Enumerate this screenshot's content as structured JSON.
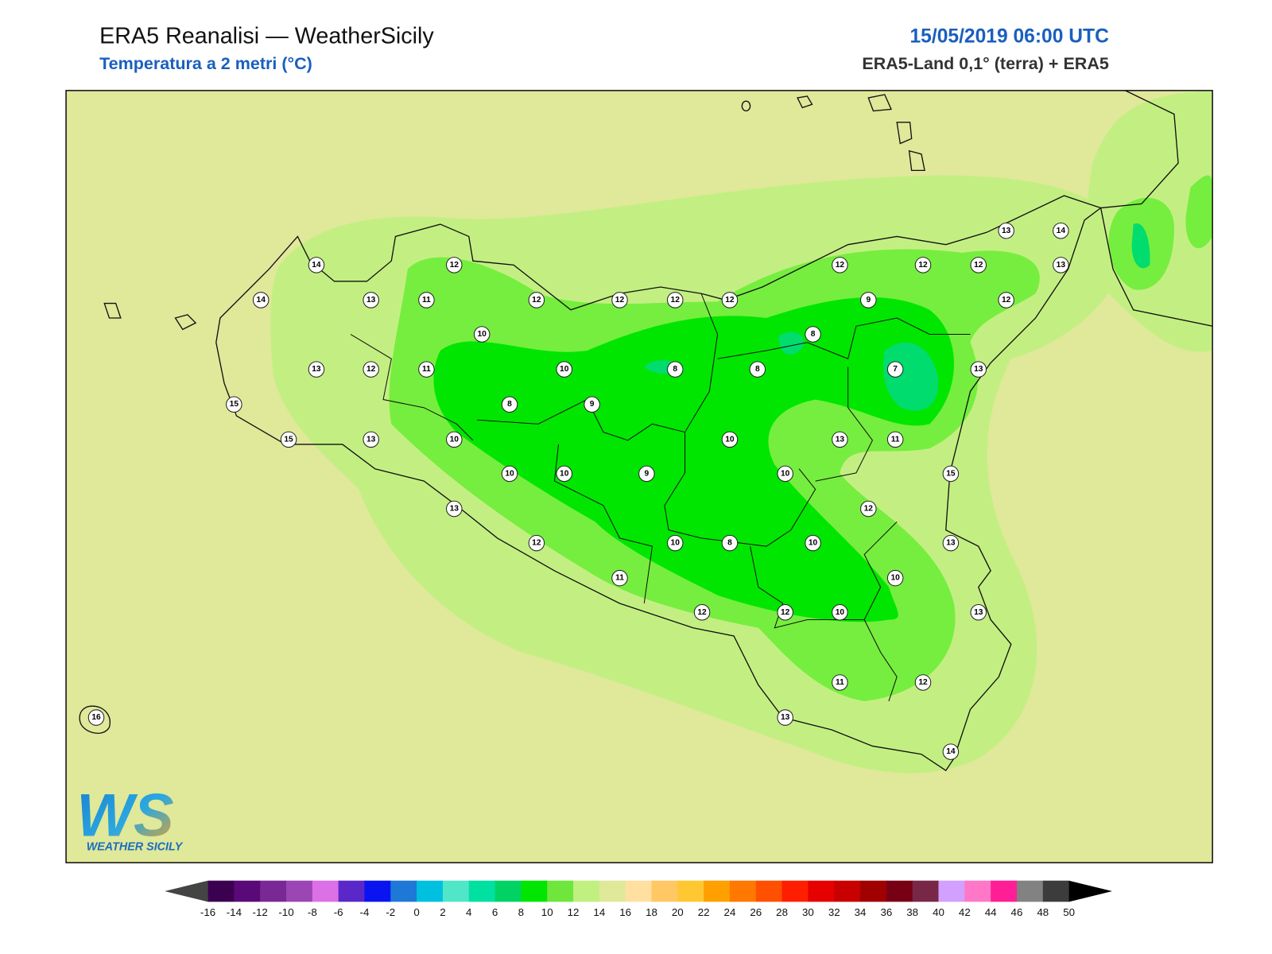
{
  "header": {
    "title": "ERA5 Reanalisi — WeatherSicily",
    "subtitle": "Temperatura a 2 metri (°C)",
    "datetime": "15/05/2019 06:00 UTC",
    "source": "ERA5-Land 0,1° (terra) + ERA5"
  },
  "map": {
    "stations": [
      14,
      14,
      13,
      11,
      12,
      12,
      12,
      12,
      12,
      12,
      12,
      12,
      13,
      14,
      13,
      9,
      12,
      10,
      8,
      13,
      12,
      11,
      10,
      8,
      8,
      7,
      13,
      15,
      8,
      9,
      15,
      13,
      10,
      10,
      13,
      11,
      15,
      10,
      10,
      9,
      10,
      13,
      12,
      12,
      10,
      8,
      10,
      13,
      10,
      11,
      12,
      12,
      10,
      13,
      11,
      12,
      13,
      14,
      16
    ]
  },
  "logo": {
    "mark": "WS",
    "name": "WEATHER SICILY"
  },
  "colorbar": {
    "ticks": [
      -16,
      -14,
      -12,
      -10,
      -8,
      -6,
      -4,
      -2,
      0,
      2,
      4,
      6,
      8,
      10,
      12,
      14,
      16,
      18,
      20,
      22,
      24,
      26,
      28,
      30,
      32,
      34,
      36,
      38,
      40,
      42,
      44,
      46,
      48,
      50
    ],
    "colors": [
      "#3c0050",
      "#5a0a78",
      "#7a2896",
      "#9b46b4",
      "#dc70e6",
      "#5a28c8",
      "#0a14f0",
      "#1e78d7",
      "#00c0e0",
      "#50e6c8",
      "#00e0a0",
      "#00d264",
      "#00e600",
      "#6ee63c",
      "#c0f080",
      "#e0e89a",
      "#ffe0a0",
      "#ffc864",
      "#ffc832",
      "#ffa000",
      "#ff7800",
      "#ff5000",
      "#ff1e00",
      "#e60000",
      "#c80000",
      "#a00000",
      "#780014",
      "#782846",
      "#d2a0ff",
      "#ff78c8",
      "#ff1e96",
      "#828282",
      "#3c3c3c"
    ],
    "under_color": "#444444",
    "over_color": "#000000"
  }
}
